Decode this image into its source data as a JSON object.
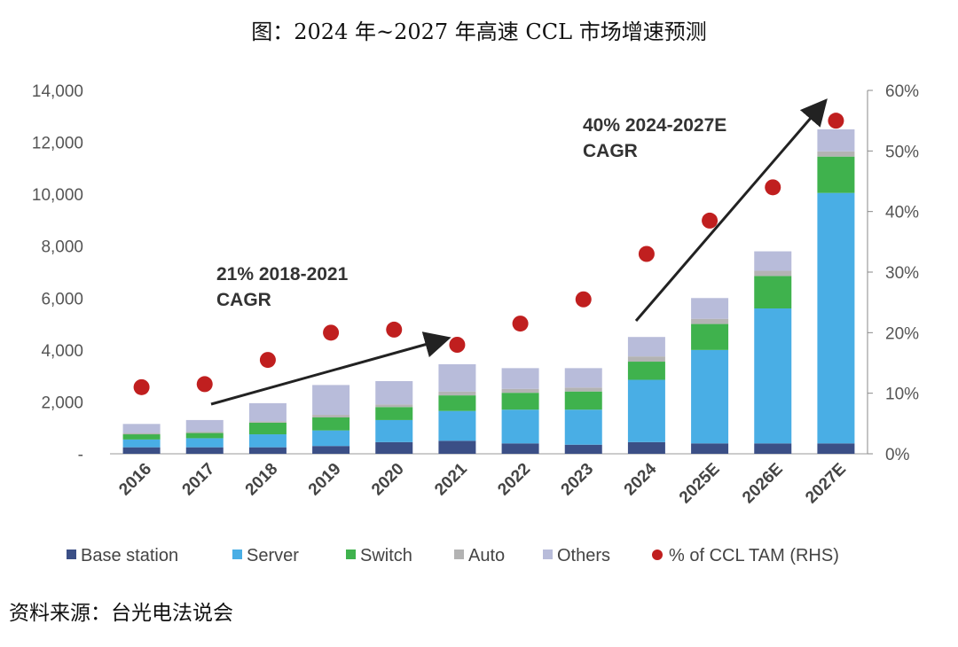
{
  "title": "图：2024 年~2027 年高速 CCL 市场增速预测",
  "source": "资料来源：台光电法说会",
  "chart_data": {
    "type": "bar",
    "stacked": true,
    "categories": [
      "2016",
      "2017",
      "2018",
      "2019",
      "2020",
      "2021",
      "2022",
      "2023",
      "2024",
      "2025E",
      "2026E",
      "2027E"
    ],
    "series": [
      {
        "name": "Base station",
        "color": "#3b4f86",
        "values": [
          250,
          250,
          250,
          300,
          450,
          500,
          400,
          350,
          450,
          400,
          400,
          400
        ]
      },
      {
        "name": "Server",
        "color": "#49aee5",
        "values": [
          300,
          350,
          500,
          600,
          850,
          1150,
          1300,
          1350,
          2400,
          3600,
          5200,
          9650
        ]
      },
      {
        "name": "Switch",
        "color": "#3fb24d",
        "values": [
          200,
          200,
          450,
          500,
          500,
          600,
          650,
          700,
          700,
          1000,
          1250,
          1400
        ]
      },
      {
        "name": "Auto",
        "color": "#b3b3b3",
        "values": [
          50,
          50,
          50,
          100,
          100,
          150,
          150,
          150,
          200,
          200,
          200,
          200
        ]
      },
      {
        "name": "Others",
        "color": "#b8bcda",
        "values": [
          350,
          450,
          700,
          1150,
          900,
          1050,
          800,
          750,
          750,
          800,
          750,
          850
        ]
      }
    ],
    "line_series": {
      "name": "% of CCL TAM (RHS)",
      "color": "#c01f1f",
      "axis": "right",
      "values": [
        11,
        11.5,
        15.5,
        20,
        20.5,
        18,
        21.5,
        25.5,
        33,
        38.5,
        44,
        55
      ]
    },
    "left_axis": {
      "ylim": [
        0,
        14000
      ],
      "ticks": [
        "-",
        "2,000",
        "4,000",
        "6,000",
        "8,000",
        "10,000",
        "12,000",
        "14,000"
      ]
    },
    "right_axis": {
      "ylim": [
        0,
        60
      ],
      "ticks": [
        "0%",
        "10%",
        "20%",
        "30%",
        "40%",
        "50%",
        "60%"
      ]
    },
    "annotations": [
      {
        "line1": "21% 2018-2021",
        "line2": "CAGR"
      },
      {
        "line1": "40% 2024-2027E",
        "line2": "CAGR"
      }
    ],
    "legend_position": "bottom"
  }
}
